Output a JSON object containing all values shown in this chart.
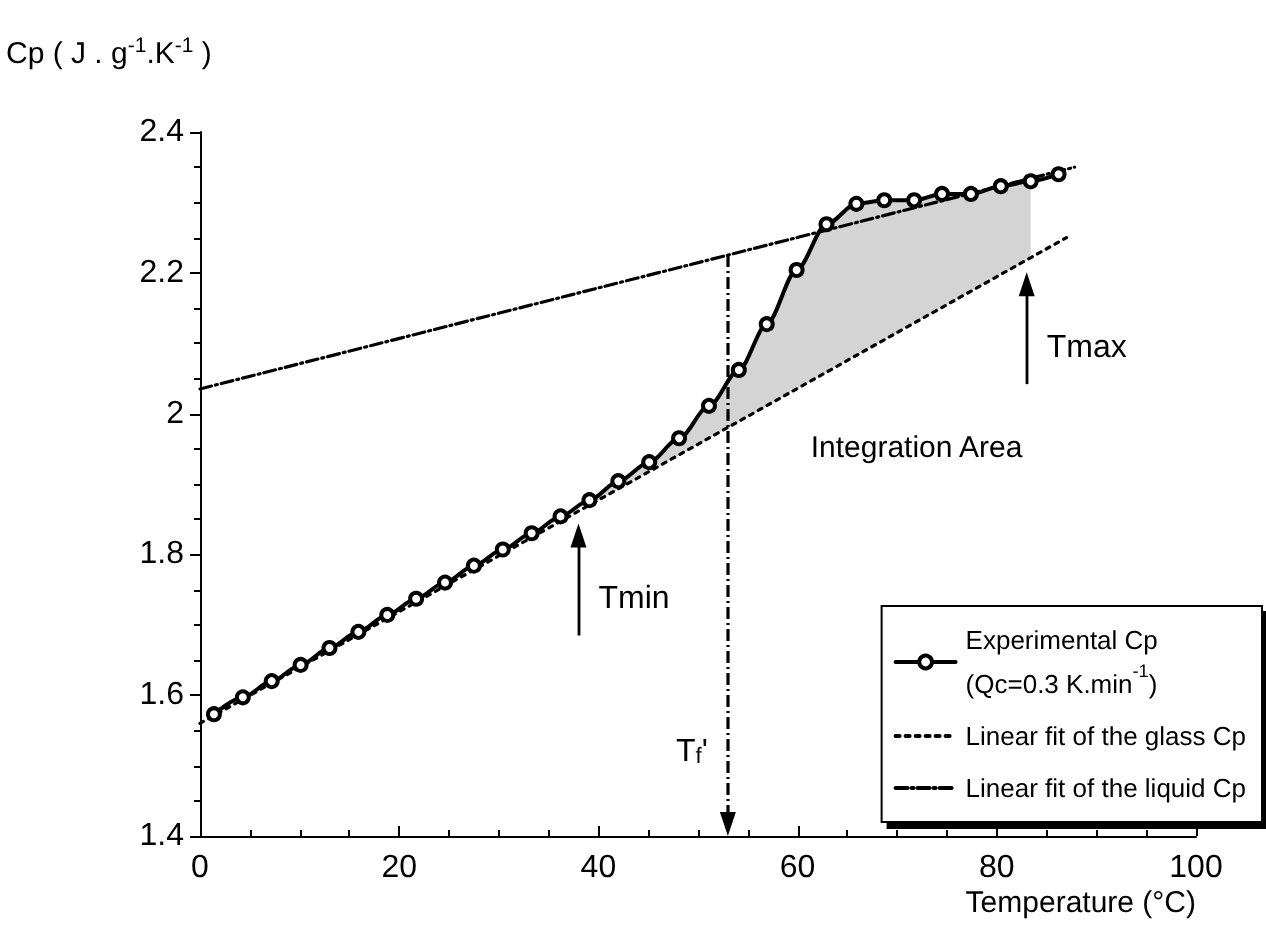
{
  "chart_data": {
    "type": "line",
    "ylabel": "Cp ( J . g$^{-1}$.K$^{-1}$ )",
    "xlabel": "Temperature (°C)",
    "xlim": [
      0,
      100
    ],
    "xticks": [
      0,
      20,
      40,
      60,
      80,
      100
    ],
    "ylim": [
      1.4,
      2.4
    ],
    "yticks": [
      1.4,
      1.6,
      1.8,
      2,
      2.2,
      2.4
    ],
    "grid": false,
    "legend": "bottom right",
    "series": [
      {
        "name": "Experimental Cp\n(Qc=0.3 K.min$^{-1}$)",
        "color": "#000000",
        "marker": "circle",
        "line_style": "solid",
        "x": [
          1.4,
          4.3,
          7.2,
          10.1,
          13.0,
          15.9,
          18.8,
          21.7,
          24.6,
          27.5,
          30.4,
          33.3,
          36.2,
          39.1,
          42.0,
          45.1,
          48.1,
          51.1,
          54.1,
          56.9,
          59.9,
          62.9,
          65.9,
          68.7,
          71.7,
          74.5,
          77.4,
          80.4,
          83.4,
          86.2
        ],
        "values": [
          1.573,
          1.597,
          1.62,
          1.643,
          1.667,
          1.69,
          1.714,
          1.737,
          1.76,
          1.784,
          1.807,
          1.83,
          1.854,
          1.877,
          1.904,
          1.931,
          1.965,
          2.011,
          2.062,
          2.127,
          2.204,
          2.269,
          2.298,
          2.303,
          2.303,
          2.312,
          2.312,
          2.323,
          2.33,
          2.34
        ],
        "lower": [
          null,
          null,
          null,
          null,
          null,
          null,
          null,
          null,
          null,
          null,
          null,
          null,
          null,
          1.87,
          1.893,
          1.918,
          1.941,
          1.965,
          1.989,
          2.011,
          2.035,
          2.059,
          2.083,
          2.105,
          2.129,
          2.151,
          2.174,
          2.198,
          2.221,
          null
        ],
        "upper": [
          null,
          null,
          null,
          null,
          null,
          null,
          null,
          null,
          null,
          null,
          null,
          null,
          null,
          1.877,
          1.904,
          1.931,
          1.965,
          2.011,
          2.062,
          2.127,
          2.204,
          2.269,
          2.298,
          2.303,
          2.303,
          2.312,
          2.312,
          2.323,
          2.33,
          null
        ]
      },
      {
        "name": "Linear fit of the glass Cp",
        "color": "#000000",
        "marker": "none",
        "line_style": "dotted",
        "x": [
          0,
          87
        ],
        "values": [
          1.56,
          2.25
        ]
      },
      {
        "name": "Linear fit of the liquid Cp",
        "color": "#000000",
        "marker": "none",
        "line_style": "dashed",
        "x": [
          0,
          87.8
        ],
        "values": [
          2.035,
          2.35
        ]
      }
    ],
    "ref_lines": [
      {
        "axis": "x",
        "value": 53,
        "label": "T$_{f}$'",
        "line_style": "dashed",
        "color": "#000000"
      }
    ],
    "annotations": [
      {
        "text": "Tmin",
        "x": 38,
        "y": 1.861
      },
      {
        "text": "Tmax",
        "x": 83,
        "y": 2.218
      },
      "Integration Area"
    ]
  }
}
